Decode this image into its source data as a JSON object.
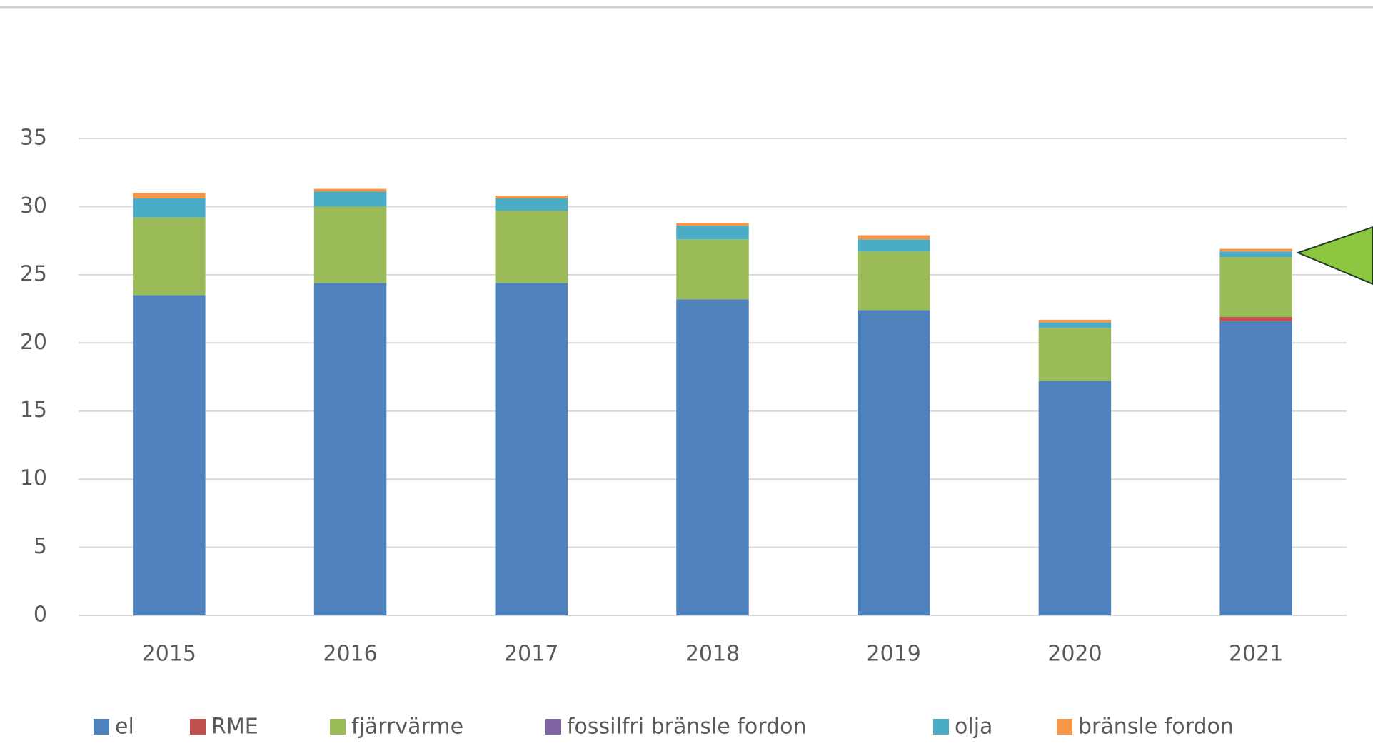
{
  "chart_data": {
    "type": "stacked-bar",
    "categories": [
      "2015",
      "2016",
      "2017",
      "2018",
      "2019",
      "2020",
      "2021"
    ],
    "series": [
      {
        "name": "el",
        "color": "#4f81bd",
        "values": [
          23.5,
          24.4,
          24.4,
          23.2,
          22.4,
          17.2,
          21.6
        ]
      },
      {
        "name": "RME",
        "color": "#c0504d",
        "values": [
          0,
          0,
          0,
          0,
          0,
          0,
          0.3
        ]
      },
      {
        "name": "fjärrvärme",
        "color": "#9bbb59",
        "values": [
          5.7,
          5.6,
          5.3,
          4.4,
          4.3,
          3.9,
          4.4
        ]
      },
      {
        "name": "fossilfri bränsle fordon",
        "color": "#8064a2",
        "values": [
          0,
          0,
          0,
          0,
          0,
          0,
          0
        ]
      },
      {
        "name": "olja",
        "color": "#4bacc6",
        "values": [
          1.4,
          1.1,
          0.9,
          1.0,
          0.9,
          0.4,
          0.4
        ]
      },
      {
        "name": "bränsle fordon",
        "color": "#f79646",
        "values": [
          0.4,
          0.2,
          0.2,
          0.2,
          0.3,
          0.2,
          0.2
        ]
      }
    ],
    "ylim": [
      0,
      35
    ],
    "yticks": [
      0,
      5,
      10,
      15,
      20,
      25,
      30,
      35
    ],
    "grid": true,
    "legend": "bottom"
  }
}
